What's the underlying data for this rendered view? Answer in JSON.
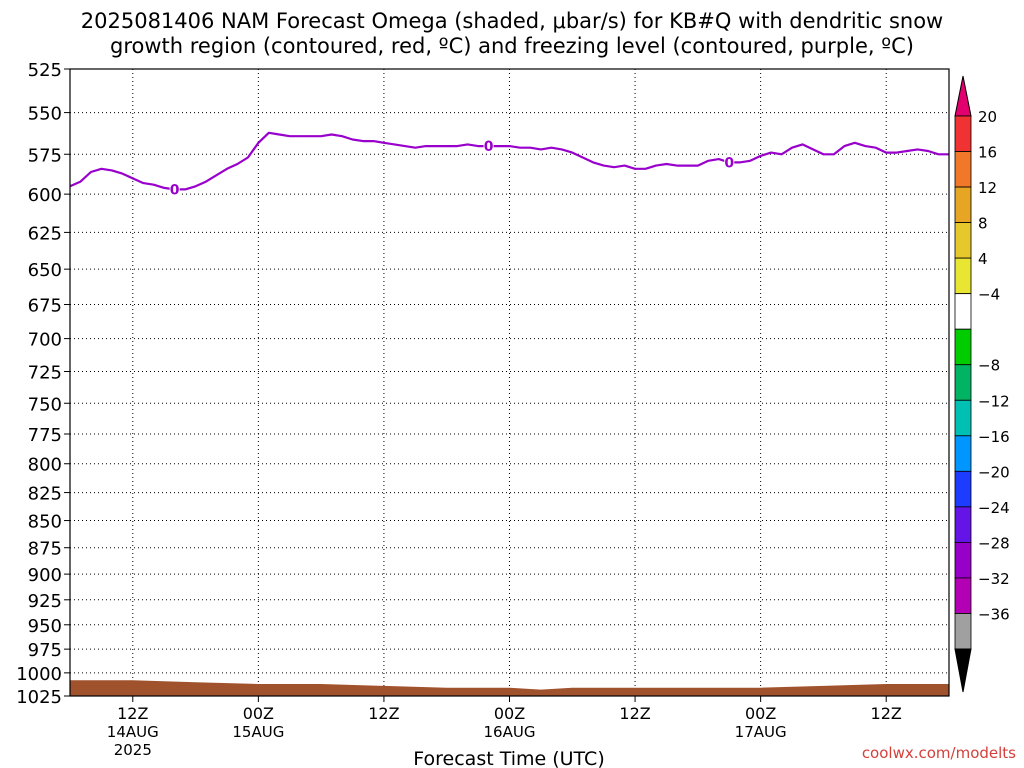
{
  "title_line1": "2025081406 NAM Forecast Omega (shaded, μbar/s) for KB#Q with dendritic snow",
  "title_line2": "growth region (contoured, red, ºC) and freezing level (contoured, purple, ºC)",
  "watermark": "coolwx.com/modelts",
  "chart_data": {
    "type": "line",
    "title": "2025081406 NAM Forecast Omega (shaded, μbar/s) for KB#Q with dendritic snow growth region (contoured, red, ºC) and freezing level (contoured, purple, ºC)",
    "xlabel": "Forecast Time (UTC)",
    "ylabel": "",
    "x_range_hours": [
      0,
      84
    ],
    "y_range_hpa": [
      525,
      1025
    ],
    "y_scale": "log",
    "y_reversed": true,
    "y_ticks": [
      525,
      550,
      575,
      600,
      625,
      650,
      675,
      700,
      725,
      750,
      775,
      800,
      825,
      850,
      875,
      900,
      925,
      950,
      975,
      1000,
      1025
    ],
    "x_ticks": [
      {
        "h": 6,
        "lines": [
          "12Z",
          "14AUG",
          "2025"
        ]
      },
      {
        "h": 18,
        "lines": [
          "00Z",
          "15AUG"
        ]
      },
      {
        "h": 30,
        "lines": [
          "12Z"
        ]
      },
      {
        "h": 42,
        "lines": [
          "00Z",
          "16AUG"
        ]
      },
      {
        "h": 54,
        "lines": [
          "12Z"
        ]
      },
      {
        "h": 66,
        "lines": [
          "00Z",
          "17AUG"
        ]
      },
      {
        "h": 78,
        "lines": [
          "12Z"
        ]
      }
    ],
    "grid": "dotted",
    "series": [
      {
        "name": "freezing level",
        "color": "#9900cc",
        "contour_label": "0",
        "label_at_hours": [
          10,
          40,
          63
        ],
        "hours": [
          0,
          1,
          2,
          3,
          4,
          5,
          6,
          7,
          8,
          9,
          10,
          11,
          12,
          13,
          14,
          15,
          16,
          17,
          18,
          19,
          20,
          21,
          22,
          23,
          24,
          25,
          26,
          27,
          28,
          29,
          30,
          31,
          32,
          33,
          34,
          35,
          36,
          37,
          38,
          39,
          40,
          41,
          42,
          43,
          44,
          45,
          46,
          47,
          48,
          49,
          50,
          51,
          52,
          53,
          54,
          55,
          56,
          57,
          58,
          59,
          60,
          61,
          62,
          63,
          64,
          65,
          66,
          67,
          68,
          69,
          70,
          71,
          72,
          73,
          74,
          75,
          76,
          77,
          78,
          79,
          80,
          81,
          82,
          83,
          84
        ],
        "pressure_hpa": [
          595,
          592,
          586,
          584,
          585,
          587,
          590,
          593,
          594,
          596,
          597,
          597,
          595,
          592,
          588,
          584,
          581,
          577,
          568,
          562,
          563,
          564,
          564,
          564,
          564,
          563,
          564,
          566,
          567,
          567,
          568,
          569,
          570,
          571,
          570,
          570,
          570,
          570,
          569,
          570,
          570,
          570,
          570,
          571,
          571,
          572,
          571,
          572,
          574,
          577,
          580,
          582,
          583,
          582,
          584,
          584,
          582,
          581,
          582,
          582,
          582,
          579,
          578,
          580,
          580,
          579,
          576,
          574,
          575,
          571,
          569,
          572,
          575,
          575,
          570,
          568,
          570,
          571,
          574,
          574,
          573,
          572,
          573,
          575,
          575
        ]
      }
    ],
    "terrain": {
      "name": "surface",
      "color": "#a0522d",
      "hours": [
        0,
        6,
        12,
        18,
        24,
        30,
        36,
        42,
        45,
        48,
        51,
        54,
        57,
        60,
        66,
        72,
        78,
        84
      ],
      "pressure_hpa": [
        1008,
        1008,
        1010,
        1012,
        1012,
        1014,
        1016,
        1016,
        1018,
        1016,
        1016,
        1016,
        1016,
        1016,
        1016,
        1014,
        1012,
        1012
      ]
    },
    "colorbar": {
      "labels": [
        "20",
        "16",
        "12",
        "8",
        "4",
        "−4",
        "−8",
        "−12",
        "−16",
        "−20",
        "−24",
        "−28",
        "−32",
        "−36"
      ],
      "colors": [
        "#e2006e",
        "#f03232",
        "#f07828",
        "#e6a523",
        "#e6c82d",
        "#e8e632",
        "#ffffff",
        "#00cc00",
        "#00b464",
        "#00c0b4",
        "#0096ff",
        "#1e3cff",
        "#6414e6",
        "#9600c8",
        "#b400b4",
        "#a0a0a0",
        "#000000"
      ]
    }
  }
}
